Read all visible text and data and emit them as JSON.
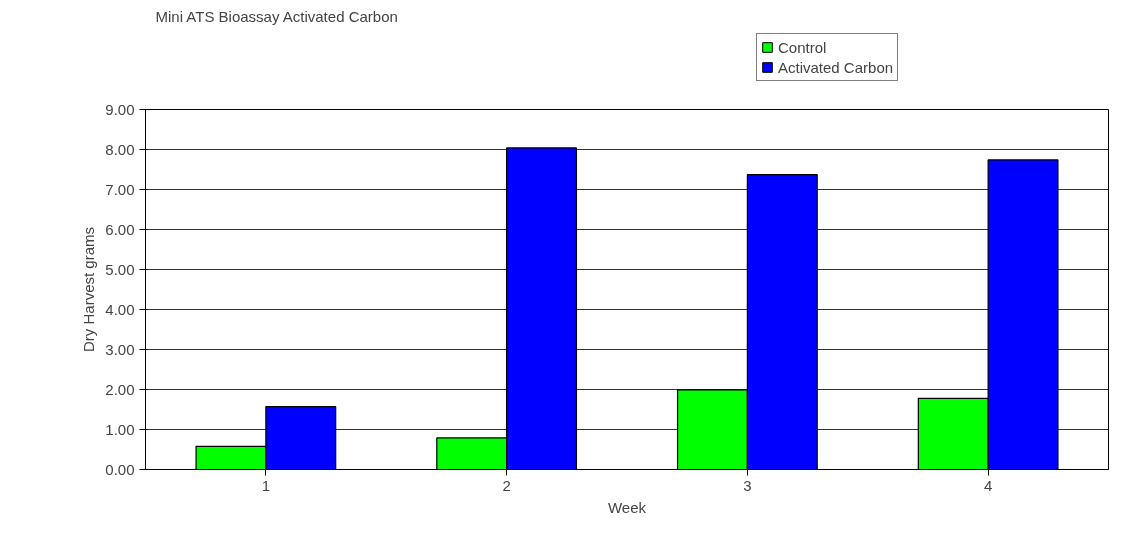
{
  "chart_data": {
    "type": "bar",
    "title": "Mini ATS  Bioassay Activated Carbon",
    "xlabel": "Week",
    "ylabel": "Dry Harvest grams",
    "categories": [
      "1",
      "2",
      "3",
      "4"
    ],
    "series": [
      {
        "name": "Control",
        "color": "#00ff00",
        "values": [
          0.58,
          0.79,
          1.99,
          1.78
        ]
      },
      {
        "name": "Activated Carbon",
        "color": "#0000ff",
        "values": [
          1.57,
          8.04,
          7.37,
          7.74
        ]
      }
    ],
    "ylim": [
      0,
      9
    ],
    "yticks": [
      {
        "value": 0,
        "label": "0.00"
      },
      {
        "value": 1,
        "label": "1.00"
      },
      {
        "value": 2,
        "label": "2.00"
      },
      {
        "value": 3,
        "label": "3.00"
      },
      {
        "value": 4,
        "label": "4.00"
      },
      {
        "value": 5,
        "label": "5.00"
      },
      {
        "value": 6,
        "label": "6.00"
      },
      {
        "value": 7,
        "label": "7.00"
      },
      {
        "value": 8,
        "label": "8.00"
      },
      {
        "value": 9,
        "label": "9.00"
      }
    ],
    "grid": "y",
    "legend": "top right"
  }
}
